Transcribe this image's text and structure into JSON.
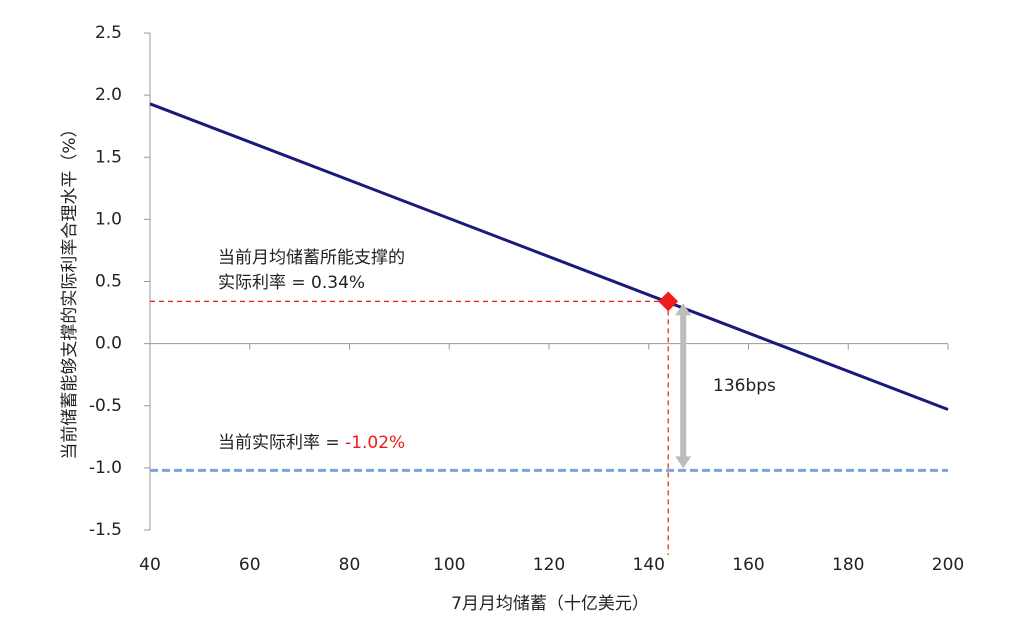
{
  "chart_data": {
    "type": "line",
    "x_label": "7月月均储蓄（十亿美元）",
    "y_label": "当前储蓄能够支撑的实际利率合理水平（%）",
    "x": [
      40,
      200
    ],
    "series": [
      {
        "color": "#1b1a7c",
        "values": [
          1.93,
          -0.53
        ]
      }
    ],
    "xlim": [
      40,
      200
    ],
    "xticks": [
      40,
      60,
      80,
      100,
      120,
      140,
      160,
      180,
      200
    ],
    "ylim": [
      -1.5,
      2.5
    ],
    "yticks": [
      {
        "value": 2.5,
        "label": "2.5"
      },
      {
        "value": 2,
        "label": "2.0"
      },
      {
        "value": 1.5,
        "label": "1.5"
      },
      {
        "value": 1,
        "label": "1.0"
      },
      {
        "value": 0.5,
        "label": "0.5"
      },
      {
        "value": 0,
        "label": "0.0"
      },
      {
        "value": -0.5,
        "label": "-0.5"
      },
      {
        "value": -1,
        "label": "-1.0"
      },
      {
        "value": -1.5,
        "label": "-1.5"
      }
    ],
    "negative_tick_color": "#e8262a",
    "grid": false,
    "marker": {
      "x": 143.9,
      "y": 0.34,
      "color": "#ee1c1c"
    },
    "reference_line": {
      "value": -1.02,
      "color": "#7aa6dc"
    },
    "annotations": {
      "supported_line1": "当前月均储蓄所能支撑的",
      "supported_line2": "实际利率 = 0.34%",
      "gap": "136bps",
      "current_prefix": "当前实际利率 = ",
      "current_value": "-1.02%"
    }
  }
}
